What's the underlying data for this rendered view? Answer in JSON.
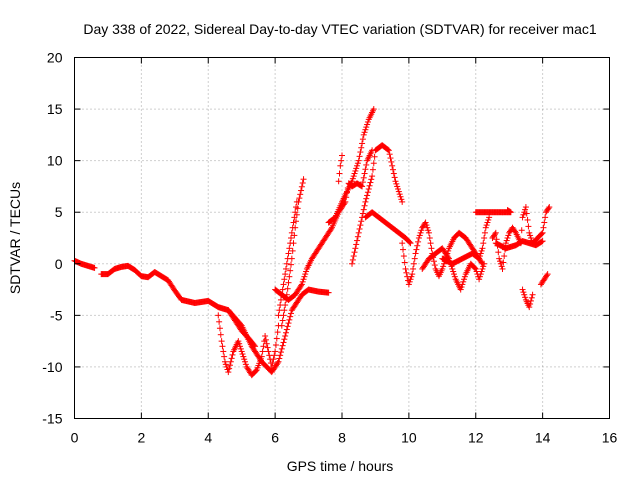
{
  "chart_data": {
    "type": "scatter",
    "title": "Day 338 of 2022, Sidereal Day-to-day VTEC variation (SDTVAR) for receiver mac1",
    "xlabel": "GPS time / hours",
    "ylabel": "SDTVAR / TECUs",
    "xlim": [
      0,
      16
    ],
    "ylim": [
      -15,
      20
    ],
    "xticks": [
      0,
      2,
      4,
      6,
      8,
      10,
      12,
      14,
      16
    ],
    "yticks": [
      -15,
      -10,
      -5,
      0,
      5,
      10,
      15,
      20
    ],
    "xtick_labels": [
      "0",
      "2",
      "4",
      "6",
      "8",
      "10",
      "12",
      "14",
      "16"
    ],
    "ytick_labels": [
      "-15",
      "-10",
      "-5",
      "0",
      "5",
      "10",
      "15",
      "20"
    ],
    "grid": true,
    "marker": "+",
    "color": "#ff0000",
    "series": [
      {
        "name": "mac1 SDTVAR",
        "traces": [
          [
            [
              0.0,
              0.3
            ],
            [
              0.2,
              0.0
            ],
            [
              0.4,
              -0.2
            ],
            [
              0.6,
              -0.4
            ]
          ],
          [
            [
              0.8,
              -1.0
            ],
            [
              1.0,
              -1.0
            ],
            [
              1.2,
              -0.5
            ],
            [
              1.4,
              -0.3
            ],
            [
              1.6,
              -0.2
            ],
            [
              1.8,
              -0.6
            ],
            [
              2.0,
              -1.2
            ],
            [
              2.2,
              -1.3
            ],
            [
              2.4,
              -0.8
            ],
            [
              2.6,
              -1.2
            ],
            [
              2.8,
              -1.6
            ],
            [
              3.0,
              -2.6
            ],
            [
              3.2,
              -3.5
            ],
            [
              3.6,
              -3.8
            ],
            [
              4.0,
              -3.6
            ],
            [
              4.3,
              -4.2
            ],
            [
              4.6,
              -4.5
            ],
            [
              5.0,
              -6.0
            ],
            [
              5.3,
              -8.0
            ],
            [
              5.6,
              -9.5
            ],
            [
              5.9,
              -10.5
            ],
            [
              6.1,
              -9.5
            ],
            [
              6.3,
              -7.0
            ],
            [
              6.5,
              -4.5
            ],
            [
              6.8,
              -3.0
            ],
            [
              7.0,
              -2.5
            ],
            [
              7.3,
              -2.7
            ],
            [
              7.6,
              -2.8
            ]
          ],
          [
            [
              4.3,
              -5.0
            ],
            [
              4.4,
              -7.5
            ],
            [
              4.5,
              -9.5
            ],
            [
              4.6,
              -10.5
            ],
            [
              4.75,
              -8.5
            ],
            [
              4.9,
              -7.5
            ],
            [
              5.0,
              -8.5
            ],
            [
              5.15,
              -10.0
            ],
            [
              5.3,
              -10.8
            ],
            [
              5.45,
              -10.3
            ],
            [
              5.6,
              -9.0
            ],
            [
              5.7,
              -7.0
            ],
            [
              5.8,
              -8.5
            ],
            [
              5.9,
              -10.0
            ],
            [
              6.0,
              -8.5
            ],
            [
              6.1,
              -6.0
            ]
          ],
          [
            [
              4.6,
              -4.5
            ],
            [
              4.8,
              -5.5
            ],
            [
              5.0,
              -6.5
            ],
            [
              5.2,
              -7.2
            ],
            [
              5.4,
              -8.0
            ]
          ],
          [
            [
              6.2,
              -6.0
            ],
            [
              6.35,
              -3.0
            ],
            [
              6.5,
              0.5
            ],
            [
              6.6,
              3.5
            ],
            [
              6.7,
              6.0
            ],
            [
              6.85,
              8.2
            ]
          ],
          [
            [
              6.1,
              -5.0
            ],
            [
              6.25,
              -2.0
            ],
            [
              6.4,
              1.0
            ],
            [
              6.5,
              3.0
            ],
            [
              6.65,
              6.0
            ]
          ],
          [
            [
              6.0,
              -2.5
            ],
            [
              6.2,
              -3.0
            ],
            [
              6.4,
              -3.5
            ],
            [
              6.6,
              -3.0
            ],
            [
              6.8,
              -2.0
            ],
            [
              6.95,
              -0.5
            ],
            [
              7.1,
              0.5
            ],
            [
              7.3,
              1.5
            ],
            [
              7.5,
              2.5
            ],
            [
              7.7,
              3.5
            ],
            [
              7.9,
              5.0
            ],
            [
              8.1,
              6.0
            ],
            [
              8.2,
              7.8
            ],
            [
              8.3,
              7.5
            ],
            [
              8.45,
              7.8
            ],
            [
              8.6,
              7.5
            ],
            [
              8.75,
              10.0
            ],
            [
              8.9,
              11.0
            ]
          ],
          [
            [
              7.6,
              4.0
            ],
            [
              7.8,
              4.5
            ],
            [
              8.0,
              6.0
            ],
            [
              8.15,
              7.0
            ],
            [
              8.3,
              8.0
            ],
            [
              8.5,
              10.0
            ],
            [
              8.65,
              12.5
            ],
            [
              8.8,
              14.0
            ],
            [
              8.95,
              15.0
            ]
          ],
          [
            [
              7.9,
              8.0
            ],
            [
              7.95,
              9.5
            ],
            [
              8.0,
              10.5
            ]
          ],
          [
            [
              8.3,
              0.0
            ],
            [
              8.5,
              3.0
            ],
            [
              8.7,
              6.0
            ],
            [
              8.9,
              8.5
            ],
            [
              9.0,
              11.0
            ],
            [
              9.2,
              11.5
            ],
            [
              9.4,
              11.0
            ],
            [
              9.5,
              9.5
            ],
            [
              9.6,
              8.0
            ],
            [
              9.7,
              7.0
            ],
            [
              9.8,
              6.0
            ]
          ],
          [
            [
              8.7,
              4.5
            ],
            [
              8.9,
              5.0
            ],
            [
              9.1,
              4.5
            ],
            [
              9.3,
              4.0
            ],
            [
              9.5,
              3.5
            ],
            [
              9.7,
              3.0
            ],
            [
              9.9,
              2.5
            ],
            [
              10.05,
              2.0
            ]
          ],
          [
            [
              9.8,
              2.0
            ],
            [
              9.9,
              -0.5
            ],
            [
              10.0,
              -2.0
            ],
            [
              10.1,
              -1.0
            ],
            [
              10.2,
              1.0
            ],
            [
              10.3,
              2.5
            ],
            [
              10.4,
              3.5
            ],
            [
              10.5,
              4.0
            ],
            [
              10.6,
              3.0
            ],
            [
              10.7,
              1.0
            ],
            [
              10.8,
              -0.5
            ],
            [
              10.9,
              -1.2
            ],
            [
              11.0,
              -0.5
            ],
            [
              11.2,
              1.5
            ],
            [
              11.35,
              2.5
            ],
            [
              11.5,
              3.0
            ],
            [
              11.7,
              2.5
            ],
            [
              11.9,
              1.5
            ],
            [
              12.1,
              0.5
            ],
            [
              12.2,
              1.5
            ],
            [
              12.3,
              3.5
            ],
            [
              12.4,
              4.5
            ]
          ],
          [
            [
              10.4,
              -0.5
            ],
            [
              10.6,
              0.5
            ],
            [
              10.8,
              1.0
            ],
            [
              11.0,
              1.5
            ],
            [
              11.2,
              0.5
            ],
            [
              11.4,
              -1.5
            ],
            [
              11.55,
              -2.5
            ],
            [
              11.7,
              -1.0
            ],
            [
              11.85,
              0.0
            ],
            [
              12.0,
              -0.5
            ],
            [
              12.1,
              -1.5
            ],
            [
              12.25,
              0.0
            ]
          ],
          [
            [
              11.0,
              0.5
            ],
            [
              11.3,
              0.0
            ],
            [
              11.6,
              0.5
            ],
            [
              11.9,
              1.0
            ],
            [
              12.1,
              0.5
            ],
            [
              12.2,
              0.0
            ]
          ],
          [
            [
              12.5,
              2.5
            ],
            [
              12.6,
              3.0
            ],
            [
              12.7,
              0.5
            ],
            [
              12.8,
              -0.5
            ],
            [
              12.9,
              2.0
            ],
            [
              13.0,
              3.0
            ],
            [
              13.1,
              3.5
            ],
            [
              13.2,
              3.0
            ],
            [
              13.35,
              2.0
            ],
            [
              13.4,
              4.5
            ],
            [
              13.5,
              5.5
            ],
            [
              13.6,
              3.0
            ],
            [
              13.7,
              2.0
            ],
            [
              13.85,
              2.5
            ],
            [
              14.0,
              3.0
            ],
            [
              14.1,
              5.0
            ],
            [
              14.2,
              5.5
            ]
          ],
          [
            [
              12.6,
              2.0
            ],
            [
              12.9,
              1.5
            ],
            [
              13.2,
              1.8
            ],
            [
              13.4,
              2.2
            ],
            [
              13.6,
              2.0
            ],
            [
              13.8,
              1.8
            ],
            [
              14.0,
              2.2
            ]
          ],
          [
            [
              13.4,
              -2.5
            ],
            [
              13.5,
              -3.5
            ],
            [
              13.6,
              -4.2
            ],
            [
              13.7,
              -3.0
            ]
          ],
          [
            [
              13.95,
              -2.0
            ],
            [
              14.05,
              -1.5
            ],
            [
              14.15,
              -1.0
            ]
          ],
          [
            [
              12.95,
              5.2
            ],
            [
              13.05,
              5.0
            ],
            [
              12.0,
              5.0
            ]
          ]
        ]
      }
    ]
  }
}
